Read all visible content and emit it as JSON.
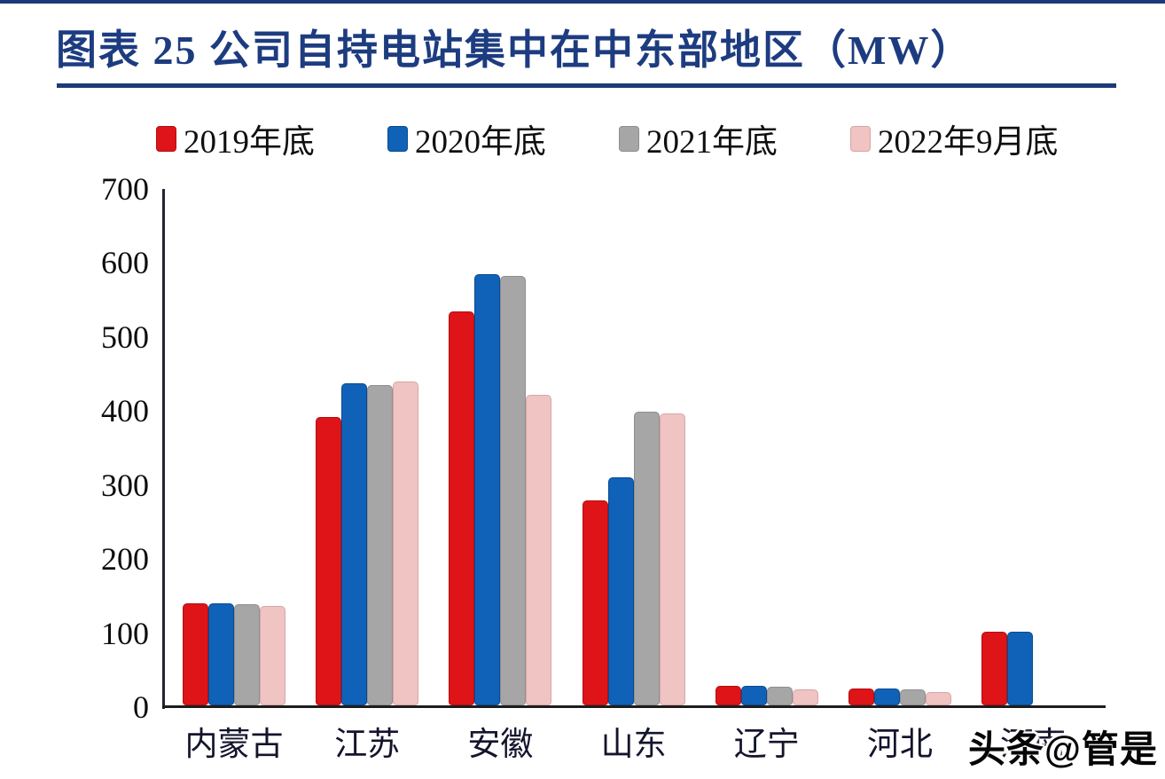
{
  "figure": {
    "title": "图表 25  公司自持电站集中在中东部地区（MW）",
    "watermark": "头条@管是"
  },
  "colors": {
    "accent_navy": "#1c3a78",
    "title_text": "#1d3c80",
    "y_axis_line": "#23233c",
    "x_axis_line": "#1d1d1d"
  },
  "chart_data": {
    "type": "bar",
    "title": "公司自持电站集中在中东部地区（MW）",
    "unit": "MW",
    "xlabel": "",
    "ylabel": "",
    "ylim": [
      0,
      700
    ],
    "yticks": [
      0,
      100,
      200,
      300,
      400,
      500,
      600,
      700
    ],
    "grid": false,
    "legend_position": "top",
    "categories": [
      "内蒙古",
      "江苏",
      "安徽",
      "山东",
      "辽宁",
      "河北",
      "河南"
    ],
    "series": [
      {
        "name": "2019年底",
        "color": "#de1418",
        "edge": "#b20f13",
        "values": [
          138,
          390,
          532,
          277,
          26,
          23,
          100
        ]
      },
      {
        "name": "2020年底",
        "color": "#1062b8",
        "edge": "#0b4a8e",
        "values": [
          138,
          435,
          582,
          308,
          26,
          23,
          100
        ]
      },
      {
        "name": "2021年底",
        "color": "#a6a6a6",
        "edge": "#8e8e93",
        "values": [
          137,
          433,
          580,
          397,
          25,
          22,
          0
        ]
      },
      {
        "name": "2022年9月底",
        "color": "#efc4c2",
        "edge": "#d8a6a4",
        "values": [
          134,
          438,
          420,
          394,
          22,
          18,
          0
        ]
      }
    ]
  }
}
